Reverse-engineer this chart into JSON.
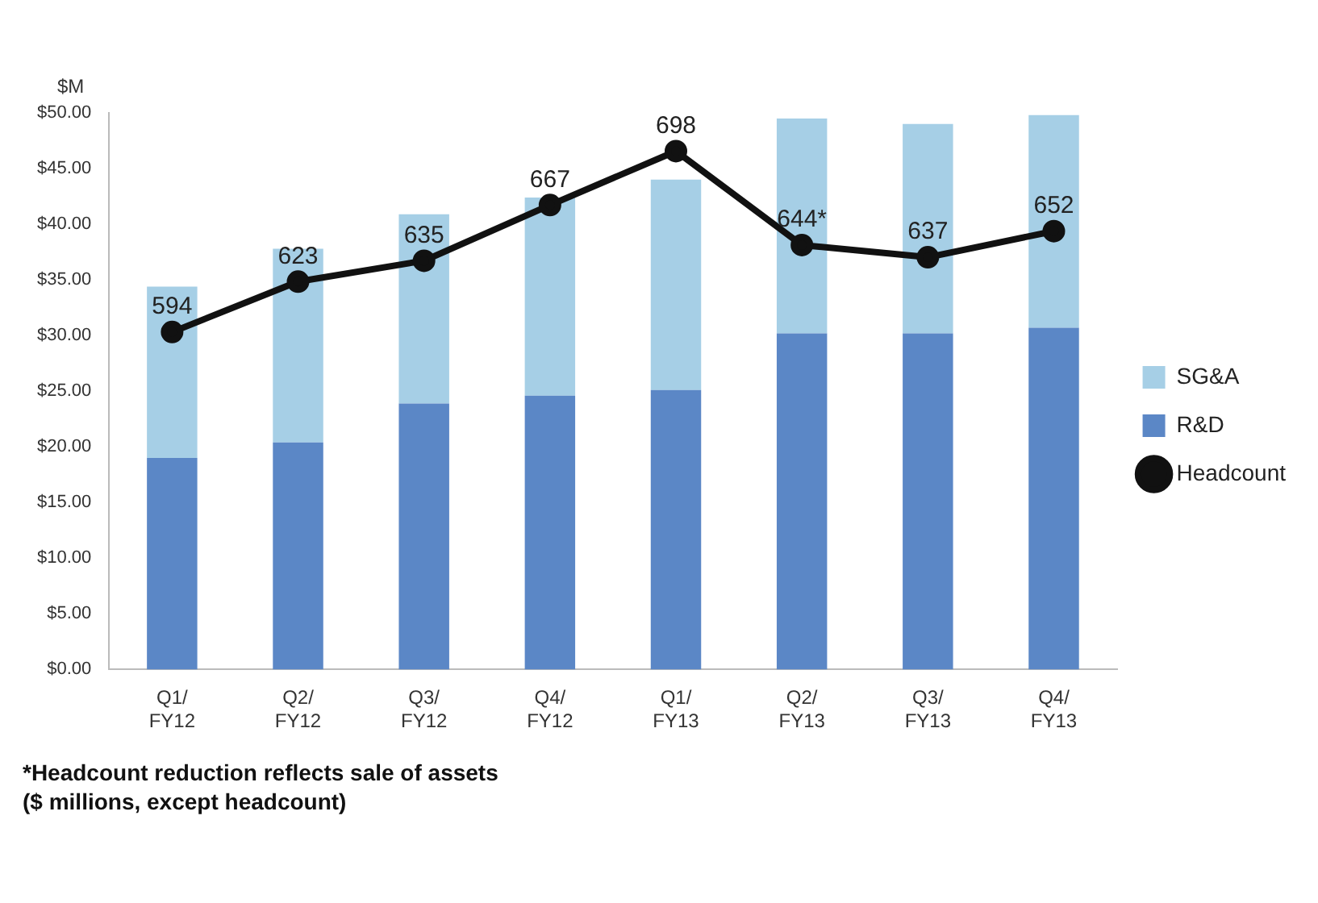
{
  "chart_data": {
    "type": "bar",
    "stacked": true,
    "ylabel": "$M",
    "categories": [
      "Q1/ FY12",
      "Q2/ FY12",
      "Q3/ FY12",
      "Q4/ FY12",
      "Q1/ FY13",
      "Q2/ FY13",
      "Q3/ FY13",
      "Q4/ FY13"
    ],
    "series": [
      {
        "name": "R&D",
        "color": "#5b87c6",
        "values": [
          19.0,
          20.4,
          23.9,
          24.6,
          25.1,
          30.2,
          30.2,
          30.7
        ]
      },
      {
        "name": "SG&A",
        "color": "#a6cfe6",
        "values": [
          15.4,
          17.4,
          17.0,
          17.8,
          18.9,
          19.3,
          18.8,
          19.1
        ]
      },
      {
        "name": "Headcount",
        "type": "line",
        "axis": "y2",
        "color": "#111111",
        "marker": "circle",
        "values": [
          594,
          623,
          635,
          667,
          698,
          644,
          637,
          652
        ],
        "value_labels": [
          "594",
          "623",
          "635",
          "667",
          "698",
          "644*",
          "637",
          "652"
        ]
      }
    ],
    "ylim": [
      0,
      50
    ],
    "yticks": [
      {
        "value": 0,
        "label": "$0.00"
      },
      {
        "value": 5,
        "label": "$5.00"
      },
      {
        "value": 10,
        "label": "$10.00"
      },
      {
        "value": 15,
        "label": "$15.00"
      },
      {
        "value": 20,
        "label": "$20.00"
      },
      {
        "value": 25,
        "label": "$25.00"
      },
      {
        "value": 30,
        "label": "$30.00"
      },
      {
        "value": 35,
        "label": "$35.00"
      },
      {
        "value": 40,
        "label": "$40.00"
      },
      {
        "value": 45,
        "label": "$45.00"
      },
      {
        "value": 50,
        "label": "$50.00"
      }
    ],
    "y2lim": [
      400,
      720
    ],
    "legend": "right",
    "grid": false,
    "annotations": [
      "*Headcount reduction reflects sale of assets",
      "($ millions, except headcount)"
    ]
  }
}
